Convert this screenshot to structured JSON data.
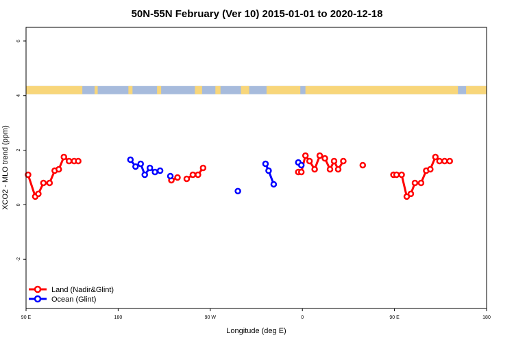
{
  "chart_data": {
    "type": "line",
    "title": "50N-55N February (Ver 10)   2015-01-01 to 2020-12-18",
    "xlabel": "Longitude (deg E)",
    "ylabel": "XCO2 - MLO trend (ppm)",
    "xlim": [
      90,
      540
    ],
    "ylim": [
      -3.8,
      6.5
    ],
    "x_ticks": [
      {
        "value": 90,
        "label": "90 E"
      },
      {
        "value": 180,
        "label": "180"
      },
      {
        "value": 270,
        "label": "90 W"
      },
      {
        "value": 360,
        "label": "0"
      },
      {
        "value": 450,
        "label": "90 E"
      },
      {
        "value": 540,
        "label": "180"
      }
    ],
    "y_ticks": [
      {
        "value": -2,
        "label": "-2"
      },
      {
        "value": 0,
        "label": "0"
      },
      {
        "value": 2,
        "label": "2"
      },
      {
        "value": 4,
        "label": "4"
      },
      {
        "value": 6,
        "label": "6"
      }
    ],
    "landmask_band": {
      "y_range": [
        4.05,
        4.35
      ],
      "ocean_color": "#a7bbdc",
      "land_color": "#f8d67a",
      "land_segments": [
        [
          90,
          145
        ],
        [
          157,
          160
        ],
        [
          190,
          194
        ],
        [
          218,
          222
        ],
        [
          255,
          262
        ],
        [
          275,
          280
        ],
        [
          300,
          308
        ],
        [
          325,
          358
        ],
        [
          363,
          512
        ],
        [
          520,
          540
        ]
      ]
    },
    "series": [
      {
        "name": "Land (Nadir&Glint)",
        "color": "#ff0000",
        "segments": [
          [
            [
              92,
              1.1
            ],
            [
              99,
              0.3
            ],
            [
              102,
              0.4
            ],
            [
              107,
              0.8
            ],
            [
              113,
              0.8
            ],
            [
              118,
              1.25
            ],
            [
              122,
              1.3
            ],
            [
              127,
              1.75
            ],
            [
              132,
              1.6
            ],
            [
              137,
              1.6
            ],
            [
              141,
              1.6
            ]
          ],
          [
            [
              232,
              0.9
            ],
            [
              238,
              1.0
            ]
          ],
          [
            [
              247,
              0.95
            ],
            [
              253,
              1.1
            ],
            [
              258,
              1.1
            ],
            [
              263,
              1.35
            ]
          ],
          [
            [
              356,
              1.2
            ],
            [
              359,
              1.2
            ],
            [
              363,
              1.8
            ],
            [
              367,
              1.6
            ],
            [
              372,
              1.3
            ],
            [
              377,
              1.8
            ],
            [
              382,
              1.7
            ],
            [
              387,
              1.3
            ],
            [
              391,
              1.6
            ],
            [
              395,
              1.3
            ],
            [
              400,
              1.6
            ]
          ],
          [
            [
              419,
              1.45
            ]
          ],
          [
            [
              449,
              1.1
            ],
            [
              452,
              1.1
            ],
            [
              457,
              1.1
            ],
            [
              462,
              0.3
            ],
            [
              466,
              0.4
            ],
            [
              470,
              0.8
            ],
            [
              476,
              0.8
            ],
            [
              481,
              1.25
            ],
            [
              485,
              1.3
            ],
            [
              490,
              1.75
            ],
            [
              494,
              1.6
            ],
            [
              499,
              1.6
            ],
            [
              504,
              1.6
            ]
          ]
        ]
      },
      {
        "name": "Ocean (Glint)",
        "color": "#0000ff",
        "segments": [
          [
            [
              192,
              1.65
            ],
            [
              197,
              1.4
            ],
            [
              202,
              1.5
            ],
            [
              206,
              1.1
            ],
            [
              211,
              1.35
            ],
            [
              216,
              1.2
            ],
            [
              221,
              1.25
            ]
          ],
          [
            [
              231,
              1.05
            ]
          ],
          [
            [
              297,
              0.5
            ]
          ],
          [
            [
              324,
              1.5
            ],
            [
              327,
              1.25
            ],
            [
              332,
              0.75
            ]
          ],
          [
            [
              356,
              1.55
            ],
            [
              359,
              1.45
            ]
          ]
        ]
      }
    ],
    "legend_position": "bottom-left"
  }
}
